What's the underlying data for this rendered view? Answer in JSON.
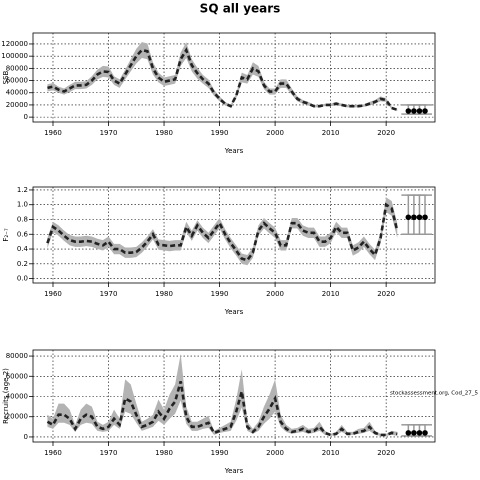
{
  "title": "SQ all years",
  "chart_data": [
    {
      "type": "line",
      "ylabel": "SSB",
      "xlabel": "Years",
      "xlim": [
        1956.4,
        2028.8
      ],
      "xticks": [
        1960,
        1970,
        1980,
        1990,
        2000,
        2010,
        2020
      ],
      "ylim": [
        -8000,
        138000
      ],
      "yticks": [
        0,
        20000,
        40000,
        60000,
        80000,
        100000,
        120000
      ],
      "grid": true,
      "color": "#222222",
      "band_color": "#b3b3b3",
      "x": [
        1959,
        1960,
        1961,
        1962,
        1963,
        1964,
        1965,
        1966,
        1967,
        1968,
        1969,
        1970,
        1971,
        1972,
        1973,
        1974,
        1975,
        1976,
        1977,
        1978,
        1979,
        1980,
        1981,
        1982,
        1983,
        1984,
        1985,
        1986,
        1987,
        1988,
        1989,
        1990,
        1991,
        1992,
        1993,
        1994,
        1995,
        1996,
        1997,
        1998,
        1999,
        2000,
        2001,
        2002,
        2003,
        2004,
        2005,
        2006,
        2007,
        2008,
        2009,
        2010,
        2011,
        2012,
        2013,
        2014,
        2015,
        2016,
        2017,
        2018,
        2019,
        2020,
        2021,
        2022
      ],
      "values": [
        48000,
        50000,
        45000,
        42000,
        47000,
        52000,
        52000,
        53000,
        60000,
        70000,
        75000,
        74000,
        60000,
        55000,
        70000,
        85000,
        100000,
        110000,
        108000,
        80000,
        65000,
        58000,
        60000,
        62000,
        95000,
        110000,
        85000,
        72000,
        62000,
        55000,
        40000,
        30000,
        22000,
        18000,
        35000,
        65000,
        62000,
        80000,
        75000,
        52000,
        42000,
        42000,
        55000,
        55000,
        42000,
        30000,
        25000,
        22000,
        18000,
        18000,
        20000,
        20000,
        22000,
        20000,
        18000,
        18000,
        18000,
        19000,
        22000,
        25000,
        30000,
        28000,
        15000,
        12000
      ],
      "lower": [
        42000,
        44000,
        40000,
        37000,
        41000,
        46000,
        46000,
        47000,
        53000,
        62000,
        66000,
        65000,
        53000,
        48000,
        62000,
        75000,
        88000,
        97000,
        95000,
        70000,
        57000,
        51000,
        53000,
        55000,
        84000,
        97000,
        75000,
        63000,
        55000,
        48000,
        35000,
        26000,
        19000,
        16000,
        31000,
        57000,
        55000,
        70000,
        66000,
        46000,
        37000,
        37000,
        48000,
        48000,
        37000,
        26000,
        22000,
        19000,
        16000,
        16000,
        18000,
        18000,
        19000,
        18000,
        16000,
        16000,
        16000,
        17000,
        19000,
        22000,
        26000,
        25000,
        13000,
        10000
      ],
      "upper": [
        54000,
        56000,
        50000,
        47000,
        53000,
        58000,
        58000,
        59000,
        67000,
        78000,
        84000,
        83000,
        67000,
        62000,
        78000,
        95000,
        112000,
        123000,
        121000,
        90000,
        73000,
        65000,
        67000,
        69000,
        106000,
        123000,
        95000,
        81000,
        69000,
        62000,
        45000,
        34000,
        25000,
        20000,
        39000,
        73000,
        69000,
        90000,
        84000,
        58000,
        47000,
        47000,
        62000,
        62000,
        47000,
        34000,
        28000,
        25000,
        20000,
        20000,
        22000,
        22000,
        25000,
        22000,
        20000,
        20000,
        20000,
        21000,
        25000,
        28000,
        34000,
        31000,
        17000,
        14000
      ],
      "forecast": {
        "x": [
          2024,
          2025,
          2026,
          2027
        ],
        "values": [
          10000,
          10000,
          10000,
          10000
        ],
        "lower": [
          5000,
          5000,
          5000,
          5000
        ],
        "upper": [
          20000,
          20000,
          20000,
          20000
        ]
      }
    },
    {
      "type": "line",
      "ylabel": "F₂₋₇",
      "xlabel": "Years",
      "xlim": [
        1956.4,
        2028.8
      ],
      "xticks": [
        1960,
        1970,
        1980,
        1990,
        2000,
        2010,
        2020
      ],
      "ylim": [
        -0.06,
        1.24
      ],
      "yticks": [
        {
          "value": 0,
          "label": "0.0"
        },
        0.2,
        0.4,
        0.6,
        0.8,
        {
          "value": 1,
          "label": "1.0"
        },
        1.2
      ],
      "grid": true,
      "color": "#222222",
      "band_color": "#b3b3b3",
      "x": [
        1959,
        1960,
        1961,
        1962,
        1963,
        1964,
        1965,
        1966,
        1967,
        1968,
        1969,
        1970,
        1971,
        1972,
        1973,
        1974,
        1975,
        1976,
        1977,
        1978,
        1979,
        1980,
        1981,
        1982,
        1983,
        1984,
        1985,
        1986,
        1987,
        1988,
        1989,
        1990,
        1991,
        1992,
        1993,
        1994,
        1995,
        1996,
        1997,
        1998,
        1999,
        2000,
        2001,
        2002,
        2003,
        2004,
        2005,
        2006,
        2007,
        2008,
        2009,
        2010,
        2011,
        2012,
        2013,
        2014,
        2015,
        2016,
        2017,
        2018,
        2019,
        2020,
        2021,
        2022
      ],
      "values": [
        0.48,
        0.7,
        0.65,
        0.58,
        0.52,
        0.5,
        0.5,
        0.51,
        0.5,
        0.47,
        0.45,
        0.5,
        0.4,
        0.4,
        0.35,
        0.35,
        0.36,
        0.42,
        0.5,
        0.6,
        0.46,
        0.45,
        0.44,
        0.45,
        0.45,
        0.7,
        0.58,
        0.72,
        0.62,
        0.55,
        0.65,
        0.75,
        0.6,
        0.48,
        0.38,
        0.27,
        0.25,
        0.35,
        0.65,
        0.75,
        0.68,
        0.62,
        0.45,
        0.45,
        0.75,
        0.75,
        0.65,
        0.62,
        0.62,
        0.5,
        0.5,
        0.55,
        0.7,
        0.62,
        0.62,
        0.38,
        0.42,
        0.5,
        0.4,
        0.32,
        0.55,
        1.0,
        0.95,
        0.65
      ],
      "lower": [
        0.41,
        0.63,
        0.58,
        0.51,
        0.45,
        0.43,
        0.43,
        0.44,
        0.43,
        0.4,
        0.38,
        0.43,
        0.33,
        0.33,
        0.28,
        0.28,
        0.29,
        0.35,
        0.43,
        0.53,
        0.39,
        0.38,
        0.37,
        0.38,
        0.38,
        0.63,
        0.51,
        0.65,
        0.55,
        0.48,
        0.58,
        0.68,
        0.53,
        0.41,
        0.31,
        0.2,
        0.18,
        0.28,
        0.58,
        0.68,
        0.61,
        0.55,
        0.38,
        0.38,
        0.68,
        0.68,
        0.58,
        0.55,
        0.55,
        0.43,
        0.43,
        0.48,
        0.63,
        0.55,
        0.55,
        0.31,
        0.35,
        0.43,
        0.33,
        0.25,
        0.48,
        0.9,
        0.85,
        0.55
      ],
      "upper": [
        0.55,
        0.77,
        0.72,
        0.65,
        0.59,
        0.57,
        0.57,
        0.58,
        0.57,
        0.54,
        0.52,
        0.57,
        0.47,
        0.47,
        0.42,
        0.42,
        0.43,
        0.49,
        0.57,
        0.67,
        0.53,
        0.52,
        0.51,
        0.52,
        0.52,
        0.77,
        0.65,
        0.79,
        0.69,
        0.62,
        0.72,
        0.82,
        0.67,
        0.55,
        0.45,
        0.34,
        0.32,
        0.42,
        0.72,
        0.82,
        0.75,
        0.69,
        0.52,
        0.52,
        0.82,
        0.82,
        0.72,
        0.69,
        0.69,
        0.57,
        0.57,
        0.62,
        0.77,
        0.69,
        0.69,
        0.45,
        0.49,
        0.57,
        0.47,
        0.39,
        0.62,
        1.1,
        1.05,
        0.75
      ],
      "forecast": {
        "x": [
          2024,
          2025,
          2026,
          2027
        ],
        "values": [
          0.83,
          0.83,
          0.83,
          0.83
        ],
        "lower": [
          0.6,
          0.6,
          0.6,
          0.6
        ],
        "upper": [
          1.13,
          1.13,
          1.13,
          1.13
        ]
      }
    },
    {
      "type": "line",
      "ylabel": "Recruits (age 2)",
      "xlabel": "Years",
      "xlim": [
        1956.4,
        2028.8
      ],
      "xticks": [
        1960,
        1970,
        1980,
        1990,
        2000,
        2010,
        2020
      ],
      "ylim": [
        -5000,
        86000
      ],
      "yticks": [
        0,
        20000,
        40000,
        60000,
        80000
      ],
      "grid": true,
      "color": "#222222",
      "band_color": "#b3b3b3",
      "annotation": "stockassessment.org, Cod_27_5",
      "x": [
        1959,
        1960,
        1961,
        1962,
        1963,
        1964,
        1965,
        1966,
        1967,
        1968,
        1969,
        1970,
        1971,
        1972,
        1973,
        1974,
        1975,
        1976,
        1977,
        1978,
        1979,
        1980,
        1981,
        1982,
        1983,
        1984,
        1985,
        1986,
        1987,
        1988,
        1989,
        1990,
        1991,
        1992,
        1993,
        1994,
        1995,
        1996,
        1997,
        1998,
        1999,
        2000,
        2001,
        2002,
        2003,
        2004,
        2005,
        2006,
        2007,
        2008,
        2009,
        2010,
        2011,
        2012,
        2013,
        2014,
        2015,
        2016,
        2017,
        2018,
        2019,
        2020,
        2021,
        2022
      ],
      "values": [
        15000,
        12000,
        22000,
        22000,
        18000,
        8000,
        18000,
        22000,
        20000,
        10000,
        8000,
        10000,
        18000,
        12000,
        38000,
        35000,
        22000,
        10000,
        12000,
        15000,
        25000,
        18000,
        28000,
        35000,
        55000,
        20000,
        10000,
        10000,
        12000,
        14000,
        4000,
        6000,
        8000,
        10000,
        25000,
        45000,
        10000,
        5000,
        10000,
        20000,
        28000,
        38000,
        15000,
        8000,
        5000,
        6000,
        8000,
        5000,
        6000,
        10000,
        4000,
        2000,
        3000,
        8000,
        3000,
        3000,
        5000,
        6000,
        10000,
        4000,
        2000,
        2000,
        4000,
        3000
      ],
      "lower": [
        10000,
        8000,
        14000,
        14000,
        12000,
        5000,
        12000,
        14000,
        13000,
        6000,
        5000,
        6000,
        12000,
        8000,
        25000,
        23000,
        14000,
        6000,
        8000,
        10000,
        16000,
        12000,
        18000,
        23000,
        36000,
        13000,
        6000,
        6000,
        8000,
        9000,
        2000,
        4000,
        5000,
        6000,
        16000,
        29000,
        6000,
        3000,
        6000,
        13000,
        18000,
        25000,
        10000,
        5000,
        3000,
        4000,
        5000,
        3000,
        4000,
        6000,
        2000,
        1000,
        2000,
        5000,
        2000,
        2000,
        3000,
        4000,
        6000,
        2000,
        1000,
        1000,
        2000,
        1000
      ],
      "upper": [
        22000,
        18000,
        33000,
        33000,
        27000,
        12000,
        27000,
        33000,
        30000,
        15000,
        12000,
        15000,
        27000,
        18000,
        57000,
        52000,
        33000,
        15000,
        18000,
        22000,
        37000,
        27000,
        42000,
        52000,
        82000,
        30000,
        15000,
        15000,
        18000,
        21000,
        6000,
        9000,
        12000,
        15000,
        37000,
        67000,
        15000,
        8000,
        15000,
        30000,
        42000,
        57000,
        22000,
        12000,
        8000,
        9000,
        12000,
        8000,
        9000,
        15000,
        6000,
        3000,
        5000,
        12000,
        5000,
        5000,
        8000,
        9000,
        15000,
        6000,
        3000,
        3000,
        6000,
        5000
      ],
      "forecast": {
        "x": [
          2024,
          2025,
          2026,
          2027
        ],
        "values": [
          4000,
          4000,
          4000,
          4000
        ],
        "lower": [
          1000,
          1000,
          1000,
          1000
        ],
        "upper": [
          12000,
          12000,
          12000,
          12000
        ]
      }
    }
  ]
}
